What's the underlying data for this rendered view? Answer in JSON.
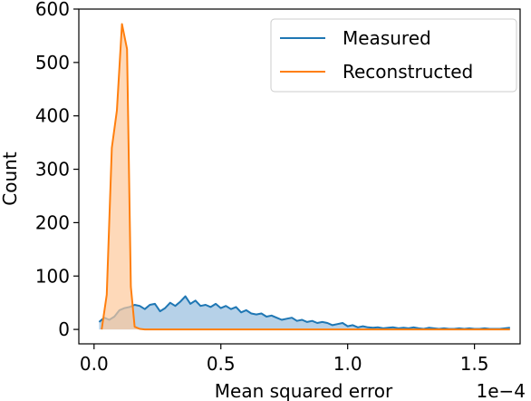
{
  "chart_data": {
    "type": "area",
    "xlabel": "Mean squared error",
    "ylabel": "Count",
    "x_offset_label": "1e−4",
    "xlim": [
      -0.06,
      1.68
    ],
    "ylim": [
      -27,
      600
    ],
    "x_ticks": [
      0.0,
      0.5,
      1.0,
      1.5
    ],
    "x_tick_labels": [
      "0.0",
      "0.5",
      "1.0",
      "1.5"
    ],
    "y_ticks": [
      0,
      100,
      200,
      300,
      400,
      500,
      600
    ],
    "y_tick_labels": [
      "0",
      "100",
      "200",
      "300",
      "400",
      "500",
      "600"
    ],
    "grid": false,
    "legend_position": "top-right",
    "colors": {
      "measured_line": "#1f77b4",
      "measured_fill": "#a9c9e4",
      "reconstructed_line": "#ff7f0e",
      "reconstructed_fill": "#fdc99b"
    },
    "series": [
      {
        "name": "Measured",
        "x": [
          0.02,
          0.04,
          0.06,
          0.08,
          0.1,
          0.12,
          0.14,
          0.16,
          0.18,
          0.2,
          0.22,
          0.24,
          0.26,
          0.28,
          0.3,
          0.32,
          0.34,
          0.36,
          0.38,
          0.4,
          0.42,
          0.44,
          0.46,
          0.48,
          0.5,
          0.52,
          0.54,
          0.56,
          0.58,
          0.6,
          0.62,
          0.64,
          0.66,
          0.68,
          0.7,
          0.72,
          0.74,
          0.76,
          0.78,
          0.8,
          0.82,
          0.84,
          0.86,
          0.88,
          0.9,
          0.92,
          0.94,
          0.96,
          0.98,
          1.0,
          1.02,
          1.04,
          1.06,
          1.08,
          1.1,
          1.12,
          1.14,
          1.16,
          1.18,
          1.2,
          1.22,
          1.24,
          1.26,
          1.28,
          1.3,
          1.32,
          1.34,
          1.36,
          1.38,
          1.4,
          1.42,
          1.44,
          1.46,
          1.48,
          1.5,
          1.52,
          1.54,
          1.56,
          1.58,
          1.6,
          1.62,
          1.64
        ],
        "values": [
          14,
          22,
          18,
          24,
          36,
          40,
          42,
          46,
          44,
          38,
          46,
          48,
          34,
          40,
          50,
          44,
          52,
          62,
          48,
          54,
          44,
          46,
          42,
          48,
          40,
          44,
          38,
          42,
          32,
          36,
          30,
          28,
          30,
          24,
          26,
          22,
          18,
          20,
          22,
          16,
          18,
          14,
          16,
          12,
          14,
          12,
          8,
          10,
          12,
          6,
          8,
          4,
          6,
          4,
          3,
          4,
          2,
          3,
          4,
          2,
          3,
          2,
          4,
          2,
          1,
          3,
          2,
          1,
          2,
          1,
          1,
          2,
          1,
          2,
          1,
          1,
          2,
          1,
          1,
          1,
          2,
          3
        ]
      },
      {
        "name": "Reconstructed",
        "x": [
          0.03,
          0.05,
          0.07,
          0.09,
          0.11,
          0.13,
          0.145,
          0.16,
          0.18,
          0.2,
          0.25,
          0.3,
          0.4,
          0.5,
          0.6,
          0.7,
          0.8,
          0.9,
          1.0,
          1.1,
          1.2,
          1.3,
          1.4,
          1.5,
          1.64
        ],
        "values": [
          0,
          65,
          340,
          410,
          572,
          525,
          80,
          5,
          1,
          0,
          0,
          0,
          0,
          0,
          0,
          0,
          0,
          0,
          0,
          0,
          0,
          0,
          0,
          0,
          0
        ]
      }
    ]
  }
}
